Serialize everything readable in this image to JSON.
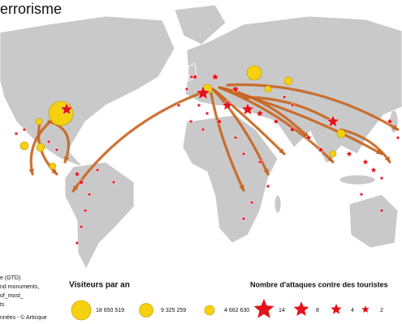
{
  "title": "errorisme",
  "sources": [
    "e (GTD)",
    "nd monuments,",
    "of_most_",
    "ts",
    "nnées - © Articque"
  ],
  "legend_visitors": {
    "title": "Visiteurs par an",
    "items": [
      {
        "value": 18650519,
        "label": "18 650 519"
      },
      {
        "value": 9325259,
        "label": "9 325 259"
      },
      {
        "value": 4662630,
        "label": "4 662 630"
      }
    ]
  },
  "legend_attacks": {
    "title": "Nombre d'attaques contre des touristes",
    "items": [
      14,
      8,
      4,
      2
    ]
  }
}
